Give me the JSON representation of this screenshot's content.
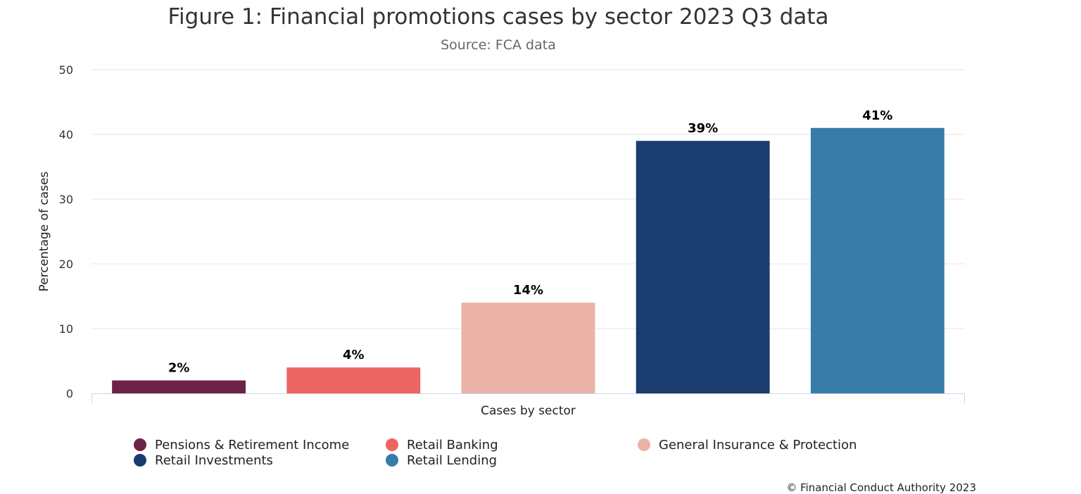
{
  "title": "Figure 1: Financial promotions cases by sector 2023 Q3 data",
  "subtitle": "Source: FCA data",
  "credit": "© Financial Conduct Authority 2023",
  "chart_data": {
    "type": "bar",
    "title": "Figure 1: Financial promotions cases by sector 2023 Q3 data",
    "subtitle": "Source: FCA data",
    "xlabel": "Cases by sector",
    "ylabel": "Percentage of cases",
    "ylim": [
      0,
      50
    ],
    "yticks": [
      0,
      10,
      20,
      30,
      40,
      50
    ],
    "grid": true,
    "legend_position": "bottom",
    "categories": [
      "Pensions & Retirement Income",
      "Retail Banking",
      "General Insurance & Protection",
      "Retail Investments",
      "Retail Lending"
    ],
    "values": [
      2,
      4,
      14,
      39,
      41
    ],
    "data_labels": [
      "2%",
      "4%",
      "14%",
      "39%",
      "41%"
    ],
    "colors": [
      "#6b2245",
      "#ec6464",
      "#ebb2a8",
      "#1a3c6f",
      "#387daa"
    ]
  }
}
